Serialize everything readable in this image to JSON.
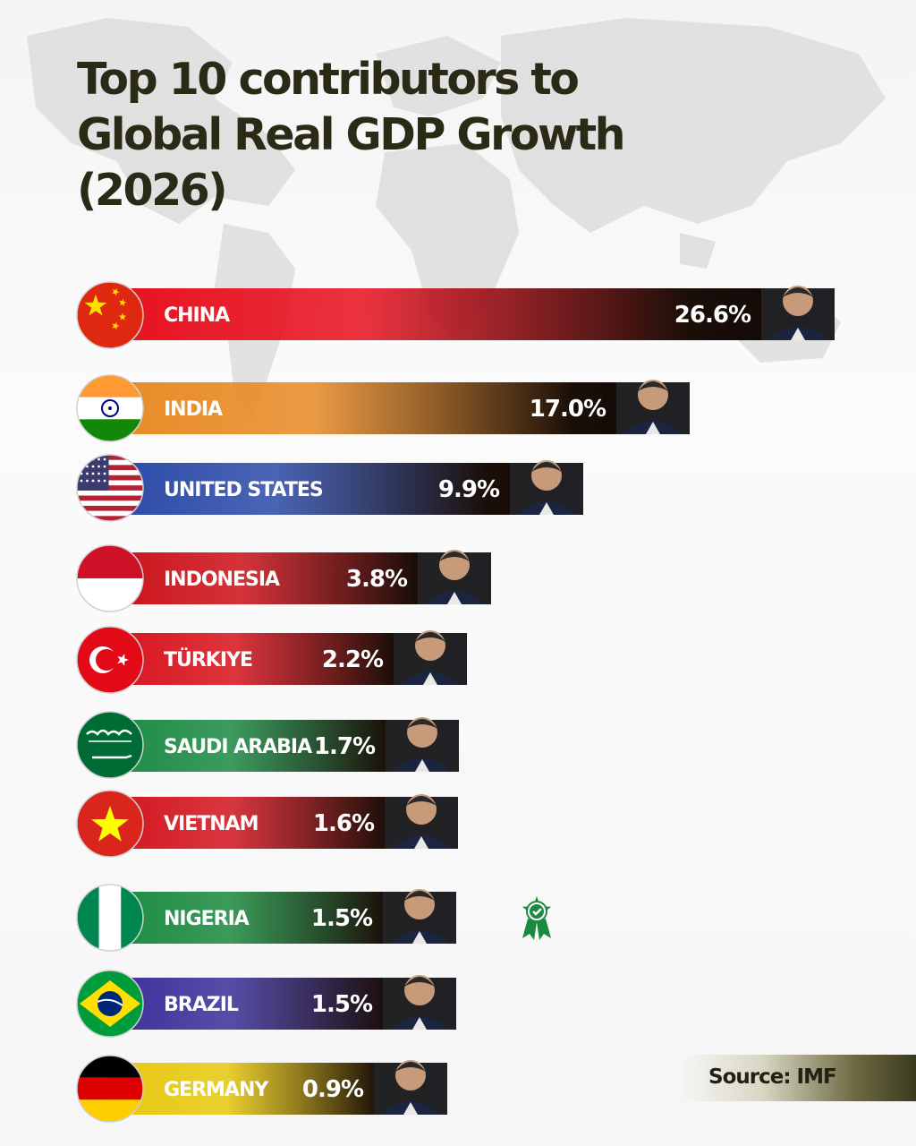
{
  "title": "Top 10 contributors to\nGlobal Real GDP Growth\n(2026)",
  "source": "Source: IMF",
  "chart_data": {
    "type": "bar",
    "orientation": "horizontal",
    "value_unit": "%",
    "categories": [
      "CHINA",
      "INDIA",
      "UNITED STATES",
      "INDONESIA",
      "TÜRKIYE",
      "SAUDI ARABIA",
      "VIETNAM",
      "NIGERIA",
      "BRAZIL",
      "GERMANY"
    ],
    "values": [
      26.6,
      17.0,
      9.9,
      3.8,
      2.2,
      1.7,
      1.6,
      1.5,
      1.5,
      0.9
    ],
    "value_labels": [
      "26.6%",
      "17.0%",
      "9.9%",
      "3.8%",
      "2.2%",
      "1.7%",
      "1.6%",
      "1.5%",
      "1.5%",
      "0.9%"
    ],
    "bar_colors": [
      "#e8101e",
      "#e88a24",
      "#2b4aa8",
      "#cc1018",
      "#d8121c",
      "#1b8a44",
      "#d3141e",
      "#1a8a3e",
      "#3a2f9a",
      "#e8c80e"
    ],
    "flags": [
      "china-flag",
      "india-flag",
      "usa-flag",
      "indonesia-flag",
      "turkiye-flag",
      "saudi-arabia-flag",
      "vietnam-flag",
      "nigeria-flag",
      "brazil-flag",
      "germany-flag"
    ],
    "badge": {
      "category": "NIGERIA",
      "icon": "verified-award-icon",
      "color": "#1a8a3e"
    }
  }
}
